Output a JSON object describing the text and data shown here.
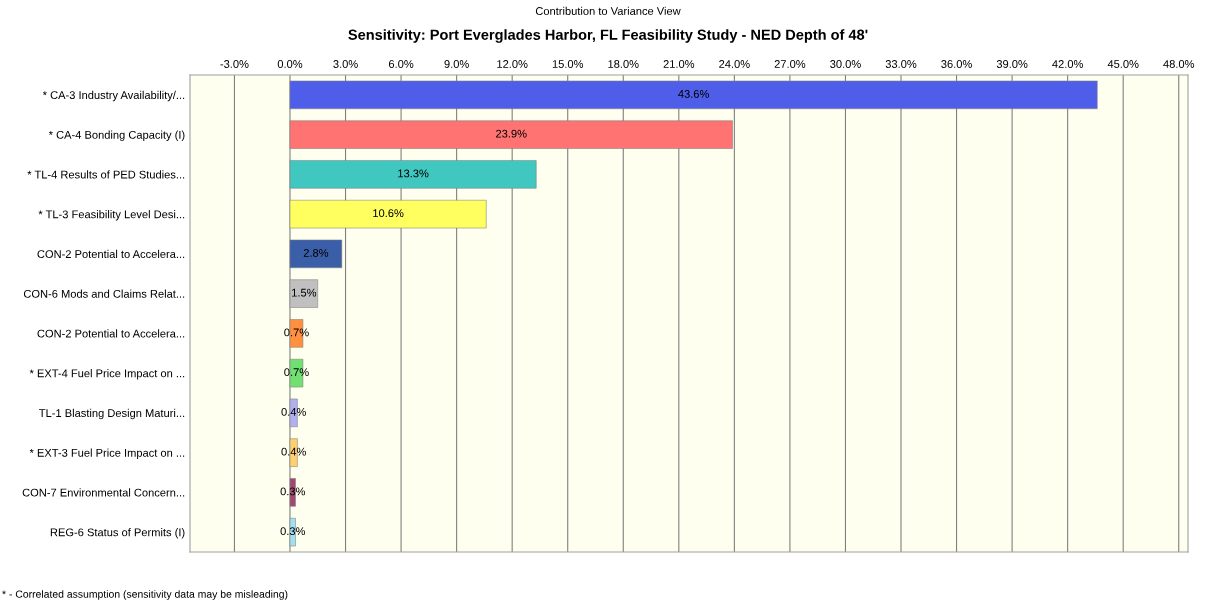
{
  "chart_data": {
    "type": "bar",
    "orientation": "horizontal",
    "title": "Contribution to Variance View",
    "subtitle": "Sensitivity: Port Everglades Harbor, FL Feasibility Study - NED Depth of 48'",
    "categories": [
      "* CA-3 Industry Availability/...",
      "* CA-4 Bonding Capacity (I)",
      "* TL-4 Results of PED Studies...",
      "* TL-3 Feasibility Level Desi...",
      "CON-2 Potential to Accelera...",
      "CON-6 Mods and Claims Relat...",
      "CON-2 Potential to Accelera...",
      "* EXT-4 Fuel Price Impact on ...",
      "TL-1 Blasting Design Maturi...",
      "* EXT-3 Fuel Price Impact on ...",
      "CON-7 Environmental Concern...",
      "REG-6 Status of Permits (I)"
    ],
    "values": [
      43.6,
      23.9,
      13.3,
      10.6,
      2.8,
      1.5,
      0.7,
      0.7,
      0.4,
      0.4,
      0.3,
      0.3
    ],
    "value_labels": [
      "43.6%",
      "23.9%",
      "13.3%",
      "10.6%",
      "2.8%",
      "1.5%",
      "0.7%",
      "0.7%",
      "0.4%",
      "0.4%",
      "0.3%",
      "0.3%"
    ],
    "colors": [
      "#4f5ee8",
      "#ff7373",
      "#40c8c0",
      "#ffff60",
      "#3a5ea8",
      "#c0c0c0",
      "#ff9040",
      "#70e070",
      "#b0b0f0",
      "#ffd070",
      "#a04870",
      "#a0e0f0"
    ],
    "xlim": [
      -5.4,
      48.5
    ],
    "xticks": [
      {
        "value": -3,
        "label": "-3.0%"
      },
      {
        "value": 0,
        "label": "0.0%"
      },
      {
        "value": 3,
        "label": "3.0%"
      },
      {
        "value": 6,
        "label": "6.0%"
      },
      {
        "value": 9,
        "label": "9.0%"
      },
      {
        "value": 12,
        "label": "12.0%"
      },
      {
        "value": 15,
        "label": "15.0%"
      },
      {
        "value": 18,
        "label": "18.0%"
      },
      {
        "value": 21,
        "label": "21.0%"
      },
      {
        "value": 24,
        "label": "24.0%"
      },
      {
        "value": 27,
        "label": "27.0%"
      },
      {
        "value": 30,
        "label": "30.0%"
      },
      {
        "value": 33,
        "label": "33.0%"
      },
      {
        "value": 36,
        "label": "36.0%"
      },
      {
        "value": 39,
        "label": "39.0%"
      },
      {
        "value": 42,
        "label": "42.0%"
      },
      {
        "value": 45,
        "label": "45.0%"
      },
      {
        "value": 48,
        "label": "48.0%"
      }
    ],
    "grid": "x",
    "annotations": [
      "* - Correlated assumption (sensitivity data may be misleading)"
    ]
  }
}
